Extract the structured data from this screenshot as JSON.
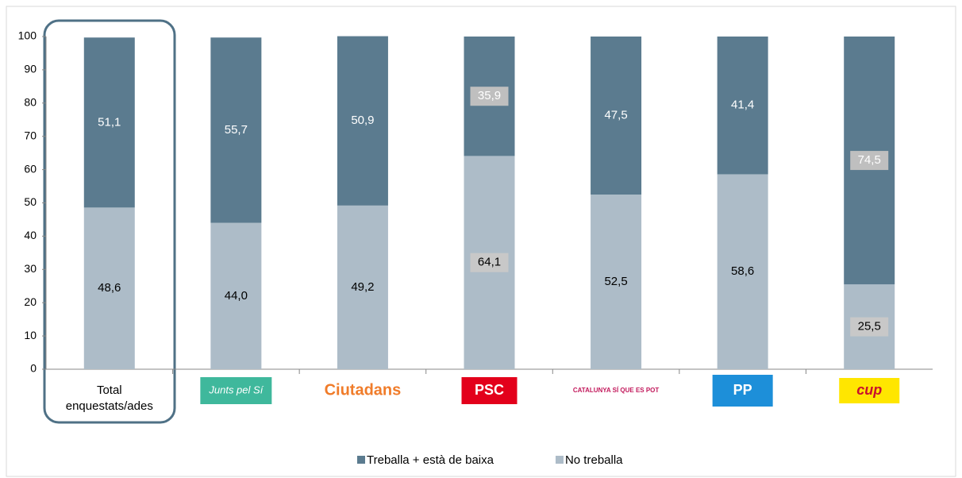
{
  "chart_data": {
    "type": "stacked_bar",
    "categories": [
      "Total enquestats/ades",
      "Junts pel Sí",
      "Ciutadans",
      "PSC",
      "CATALUNYA SÍ QUE ES POT",
      "PP",
      "cup"
    ],
    "series": [
      {
        "name": "No treballa",
        "color": "#adbcc8",
        "values": [
          48.6,
          44.0,
          49.2,
          64.1,
          52.5,
          58.6,
          25.5
        ],
        "value_labels": [
          "48,6",
          "44,0",
          "49,2",
          "64,1",
          "52,5",
          "58,6",
          "25,5"
        ]
      },
      {
        "name": "Treballa + està de baixa",
        "color": "#5b7b8f",
        "values": [
          51.1,
          55.7,
          50.9,
          35.9,
          47.5,
          41.4,
          74.5
        ],
        "value_labels": [
          "51,1",
          "55,7",
          "50,9",
          "35,9",
          "47,5",
          "41,4",
          "74,5"
        ]
      }
    ],
    "ylim": [
      0,
      100
    ],
    "yticks": [
      0,
      10,
      20,
      30,
      40,
      50,
      60,
      70,
      80,
      90,
      100
    ],
    "grid": false
  }
}
